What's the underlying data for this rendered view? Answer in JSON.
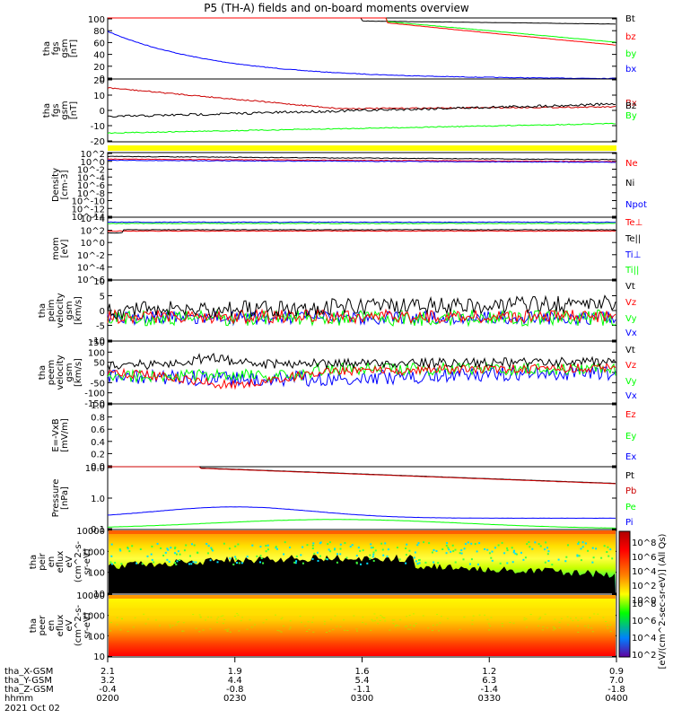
{
  "title": "P5 (TH-A) fields and on-board moments overview",
  "colors": {
    "black": "#000000",
    "red": "#ff0000",
    "green": "#00ff00",
    "blue": "#0000ff",
    "darkred": "#cc0000",
    "yellow": "#ffff00"
  },
  "footer": {
    "row_labels": [
      "tha_X-GSM",
      "tha_Y-GSM",
      "tha_Z-GSM",
      "hhmm",
      "2021 Oct 02"
    ],
    "columns": [
      {
        "values": [
          "2.1",
          "3.2",
          "-0.4",
          "0200"
        ]
      },
      {
        "values": [
          "1.9",
          "4.4",
          "-0.8",
          "0230"
        ]
      },
      {
        "values": [
          "1.6",
          "5.4",
          "-1.1",
          "0300"
        ]
      },
      {
        "values": [
          "1.2",
          "6.3",
          "-1.4",
          "0330"
        ]
      },
      {
        "values": [
          "0.9",
          "7.0",
          "-1.8",
          "0400"
        ]
      }
    ]
  },
  "colorbar": {
    "label": "[eV/(cm^2-sec-sr-eV)] (All Qs)",
    "ticks_top": [
      "10^8",
      "10^6",
      "10^4",
      "10^2",
      "10^0"
    ],
    "ticks_bottom": [
      "10^8",
      "10^6",
      "10^4",
      "10^2"
    ]
  },
  "chart_data": [
    {
      "type": "line",
      "ylabel": [
        "tha",
        "fgs",
        "gsm",
        "[nT]"
      ],
      "ylim": [
        0,
        100
      ],
      "yticks": [
        "100",
        "80",
        "60",
        "40",
        "20",
        "0"
      ],
      "series": [
        {
          "name": "Bt",
          "color": "black"
        },
        {
          "name": "bz",
          "color": "red"
        },
        {
          "name": "by",
          "color": "green"
        },
        {
          "name": "bx",
          "color": "blue"
        }
      ]
    },
    {
      "type": "line",
      "ylabel": [
        "tha",
        "fgs",
        "gsm",
        "[nT]"
      ],
      "ylim": [
        -25,
        20
      ],
      "yticks": [
        "20",
        "10",
        "0",
        "-10",
        "-20"
      ],
      "series": [
        {
          "name": "Bx",
          "color": "darkred"
        },
        {
          "name": "Bz",
          "color": "black"
        },
        {
          "name": "By",
          "color": "green"
        }
      ]
    },
    {
      "type": "line",
      "ylabel": [
        "Density",
        "[cm-3]"
      ],
      "log": true,
      "yticks": [
        "10^2",
        "10^0",
        "10^-2",
        "10^-4",
        "10^-6",
        "10^-8",
        "10^-10",
        "10^-12",
        "10^-14"
      ],
      "series": [
        {
          "name": "Ne",
          "color": "red"
        },
        {
          "name": "Ni",
          "color": "black"
        },
        {
          "name": "Npot",
          "color": "blue"
        }
      ]
    },
    {
      "type": "line",
      "ylabel": [
        "mom",
        "[eV]"
      ],
      "log": true,
      "yticks": [
        "10^4",
        "10^2",
        "10^0",
        "10^-2",
        "10^-4",
        "10^-6"
      ],
      "series": [
        {
          "name": "Te⊥",
          "color": "red"
        },
        {
          "name": "Te||",
          "color": "black"
        },
        {
          "name": "Ti⊥",
          "color": "blue"
        },
        {
          "name": "Ti||",
          "color": "green"
        }
      ]
    },
    {
      "type": "line",
      "ylabel": [
        "tha",
        "peim",
        "velocity",
        "gsm",
        "[km/s]"
      ],
      "ylim": [
        -15,
        10
      ],
      "yticks": [
        "10",
        "5",
        "0",
        "-5",
        "-10"
      ],
      "series": [
        {
          "name": "Vt",
          "color": "black"
        },
        {
          "name": "Vz",
          "color": "red"
        },
        {
          "name": "Vy",
          "color": "green"
        },
        {
          "name": "Vx",
          "color": "blue"
        }
      ]
    },
    {
      "type": "line",
      "ylabel": [
        "tha",
        "peem",
        "velocity",
        "gsm",
        "[km/s]"
      ],
      "ylim": [
        -150,
        150
      ],
      "yticks": [
        "150",
        "100",
        "50",
        "0",
        "-50",
        "-100",
        "-150"
      ],
      "series": [
        {
          "name": "Vt",
          "color": "black"
        },
        {
          "name": "Vz",
          "color": "red"
        },
        {
          "name": "Vy",
          "color": "green"
        },
        {
          "name": "Vx",
          "color": "blue"
        }
      ]
    },
    {
      "type": "line",
      "ylabel": [
        "E=-VxB",
        "[mV/m]"
      ],
      "ylim": [
        0,
        1
      ],
      "yticks": [
        "1.0",
        "0.8",
        "0.6",
        "0.4",
        "0.2",
        "0.0"
      ],
      "series": [
        {
          "name": "Ez",
          "color": "red"
        },
        {
          "name": "Ey",
          "color": "green"
        },
        {
          "name": "Ex",
          "color": "blue"
        }
      ]
    },
    {
      "type": "line",
      "ylabel": [
        "Pressure",
        "[nPa]"
      ],
      "log": true,
      "yticks": [
        "10.0",
        "1.0",
        "0.1"
      ],
      "series": [
        {
          "name": "Pt",
          "color": "black"
        },
        {
          "name": "Pb",
          "color": "darkred"
        },
        {
          "name": "Pe",
          "color": "green"
        },
        {
          "name": "Pi",
          "color": "blue"
        }
      ]
    },
    {
      "type": "heatmap",
      "ylabel": [
        "tha",
        "peir",
        "en",
        "eflux",
        "eV",
        "(cm^2-s-",
        "sr-eV)"
      ],
      "yticks": [
        "10000",
        "1000",
        "100",
        "10"
      ]
    },
    {
      "type": "heatmap",
      "ylabel": [
        "tha",
        "peer",
        "en",
        "eflux",
        "eV",
        "(cm^2-s-",
        "sr-eV)"
      ],
      "yticks": [
        "10000",
        "1000",
        "100",
        "10"
      ]
    }
  ]
}
